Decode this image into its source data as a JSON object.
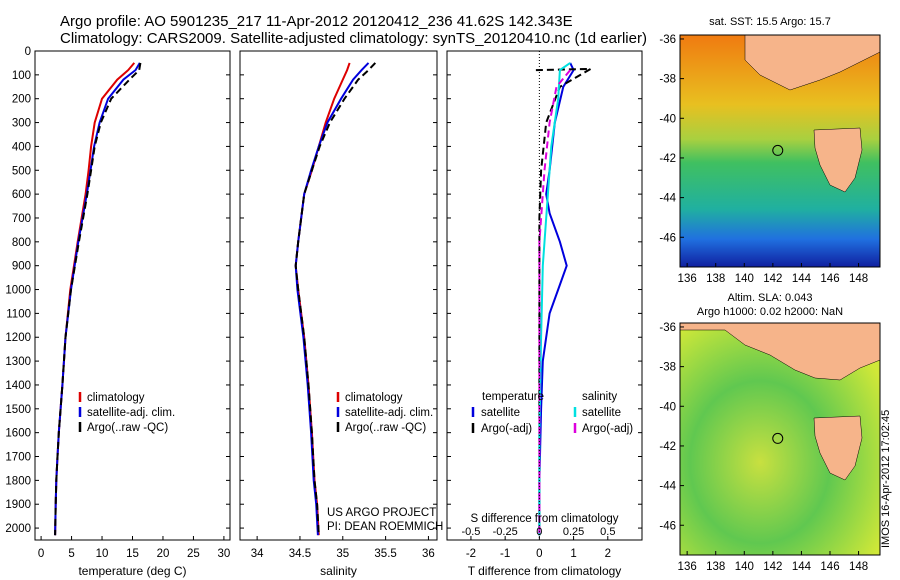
{
  "title": {
    "line1": "Argo profile: AO 5901235_217 11-Apr-2012 20120412_236 41.62S 142.343E",
    "line2": "Climatology: CARS2009. Satellite-adjusted climatology: synTS_20120410.nc (1d earlier)"
  },
  "stamp": "IMOS 16-Apr-2012 17:02:45",
  "colors": {
    "climatology": "#dd0000",
    "satellite": "#0000dd",
    "argo": "#000000",
    "sal_satellite": "#00e0e0",
    "sal_argo": "#dd00dd",
    "land": "#f6b48a"
  },
  "chart_data": [
    {
      "type": "line",
      "xlabel": "temperature (deg C)",
      "ylabel": "",
      "xlim": [
        -1,
        31
      ],
      "ylim": [
        2050,
        0
      ],
      "xticks": [
        0,
        5,
        10,
        15,
        20,
        25,
        30
      ],
      "yticks": [
        0,
        100,
        200,
        300,
        400,
        500,
        600,
        700,
        800,
        900,
        1000,
        1100,
        1200,
        1300,
        1400,
        1500,
        1600,
        1700,
        1800,
        1900,
        2000
      ],
      "legend": [
        "climatology",
        "satellite-adj. clim.",
        "Argo(..raw -QC)"
      ],
      "legend_position": "center-left",
      "series": [
        {
          "name": "climatology",
          "color": "#dd0000",
          "style": "solid",
          "x": [
            15.3,
            14.3,
            12.5,
            10,
            8.8,
            8.2,
            7.8,
            7.3,
            6,
            4.8,
            4,
            3.5,
            3.2,
            2.9,
            2.7,
            2.5,
            2.4,
            2.3
          ],
          "y": [
            50,
            80,
            120,
            200,
            300,
            400,
            500,
            600,
            800,
            1000,
            1200,
            1400,
            1500,
            1600,
            1700,
            1800,
            1900,
            2030
          ]
        },
        {
          "name": "satellite-adj. clim.",
          "color": "#0000dd",
          "style": "solid",
          "x": [
            16.2,
            15.5,
            13.5,
            11,
            9.6,
            8.7,
            8.1,
            7.5,
            6.1,
            4.9,
            4,
            3.5,
            3.2,
            2.9,
            2.7,
            2.5,
            2.4,
            2.3
          ],
          "y": [
            50,
            80,
            120,
            200,
            300,
            400,
            500,
            600,
            800,
            1000,
            1200,
            1400,
            1500,
            1600,
            1700,
            1800,
            1900,
            2030
          ]
        },
        {
          "name": "Argo(..raw -QC)",
          "color": "#000000",
          "style": "dashed",
          "x": [
            16.3,
            16.1,
            14.5,
            11.5,
            9.8,
            8.8,
            8.2,
            7.6,
            6.2,
            4.9,
            4,
            3.5,
            3.2,
            2.9,
            2.7,
            2.5,
            2.4,
            2.3
          ],
          "y": [
            50,
            80,
            120,
            200,
            300,
            400,
            500,
            600,
            800,
            1000,
            1200,
            1400,
            1500,
            1600,
            1700,
            1800,
            1900,
            2030
          ]
        }
      ]
    },
    {
      "type": "line",
      "xlabel": "salinity",
      "ylabel": "",
      "xlim": [
        33.8,
        36.1
      ],
      "xticks": [
        34,
        34.5,
        35,
        35.5,
        36
      ],
      "legend": [
        "climatology",
        "satellite-adj. clim.",
        "Argo(..raw -QC)"
      ],
      "legend_position": "center-right",
      "annotation": [
        "US ARGO PROJECT",
        "PI: DEAN ROEMMICH"
      ],
      "series": [
        {
          "name": "climatology",
          "color": "#dd0000",
          "style": "solid",
          "x": [
            35.08,
            35.05,
            35.0,
            34.9,
            34.8,
            34.72,
            34.64,
            34.55,
            34.48,
            34.45,
            34.48,
            34.55,
            34.6,
            34.64,
            34.67,
            34.7,
            34.72
          ],
          "y": [
            50,
            80,
            120,
            200,
            300,
            400,
            500,
            600,
            800,
            900,
            1000,
            1200,
            1400,
            1600,
            1800,
            1900,
            2030
          ]
        },
        {
          "name": "satellite-adj. clim.",
          "color": "#0000dd",
          "style": "solid",
          "x": [
            35.3,
            35.22,
            35.12,
            34.98,
            34.82,
            34.72,
            34.63,
            34.55,
            34.48,
            34.45,
            34.47,
            34.54,
            34.59,
            34.63,
            34.66,
            34.69,
            34.71
          ],
          "y": [
            50,
            80,
            120,
            200,
            300,
            400,
            500,
            600,
            800,
            900,
            1000,
            1200,
            1400,
            1600,
            1800,
            1900,
            2030
          ]
        },
        {
          "name": "Argo(..raw -QC)",
          "color": "#000000",
          "style": "dashed",
          "x": [
            35.38,
            35.3,
            35.18,
            35.02,
            34.85,
            34.73,
            34.64,
            34.55,
            34.48,
            34.45,
            34.48,
            34.55,
            34.6,
            34.64,
            34.67,
            34.7,
            34.72
          ],
          "y": [
            50,
            80,
            120,
            200,
            300,
            400,
            500,
            600,
            800,
            900,
            1000,
            1200,
            1400,
            1600,
            1800,
            1900,
            2030
          ]
        }
      ]
    },
    {
      "type": "line",
      "xlabel": "T difference from climatology",
      "top_label": "S difference from climatology",
      "xlim": [
        -2.7,
        3.0
      ],
      "xticks": [
        -2,
        -1,
        0,
        1,
        2
      ],
      "top_ticks": [
        "-0.5",
        "-0.25",
        "0",
        "0.25",
        "0.5"
      ],
      "legend_left": {
        "header": "temperature",
        "items": [
          "satellite",
          "Argo(-adj)"
        ]
      },
      "legend_right": {
        "header": "salinity",
        "items": [
          "satellite",
          "Argo(-adj)"
        ]
      },
      "series": [
        {
          "name": "satellite",
          "color": "#0000dd",
          "style": "solid",
          "x": [
            0.9,
            1.0,
            0.7,
            0.45,
            0.3,
            0.2,
            0.3,
            0.6,
            0.8,
            0.55,
            0.3,
            0.1,
            0.05,
            0,
            0
          ],
          "y": [
            50,
            80,
            150,
            300,
            500,
            600,
            680,
            800,
            900,
            1000,
            1100,
            1300,
            1500,
            1800,
            2030
          ]
        },
        {
          "name": "Argo(-adj)",
          "color": "#000000",
          "style": "dashed",
          "x": [
            -0.1,
            1.5,
            0.6,
            0.2,
            0.05,
            0,
            0,
            0,
            0,
            0
          ],
          "y": [
            80,
            75,
            150,
            300,
            500,
            700,
            900,
            1200,
            1600,
            2030
          ]
        },
        {
          "name": "satellite",
          "color": "#00e0e0",
          "style": "solid",
          "x": [
            0.9,
            0.6,
            0.55,
            0.35,
            0.25,
            0.1,
            0.05,
            0,
            0
          ],
          "y": [
            50,
            80,
            200,
            400,
            600,
            900,
            1200,
            1600,
            2030
          ]
        },
        {
          "name": "Argo(-adj)",
          "color": "#dd00dd",
          "style": "dashed",
          "x": [
            0.9,
            0.5,
            0.3,
            0.15,
            0,
            0,
            0
          ],
          "y": [
            80,
            150,
            300,
            500,
            800,
            1300,
            2030
          ]
        }
      ]
    },
    {
      "type": "heatmap",
      "title": "sat. SST: 15.5 Argo: 15.7",
      "xticks": [
        136,
        138,
        140,
        142,
        144,
        146,
        148
      ],
      "yticks": [
        -36,
        -38,
        -40,
        -42,
        -44,
        -46
      ],
      "xlim": [
        135.5,
        149.5
      ],
      "ylim": [
        -47.5,
        -35.8
      ],
      "marker": {
        "lon": 142.343,
        "lat": -41.62
      }
    },
    {
      "type": "heatmap",
      "title_lines": [
        "Altim. SLA: 0.043",
        "Argo h1000: 0.02 h2000: NaN"
      ],
      "xticks": [
        136,
        138,
        140,
        142,
        144,
        146,
        148
      ],
      "yticks": [
        -36,
        -38,
        -40,
        -42,
        -44,
        -46
      ],
      "xlim": [
        135.5,
        149.5
      ],
      "ylim": [
        -47.5,
        -35.8
      ],
      "marker": {
        "lon": 142.343,
        "lat": -41.62
      }
    }
  ]
}
